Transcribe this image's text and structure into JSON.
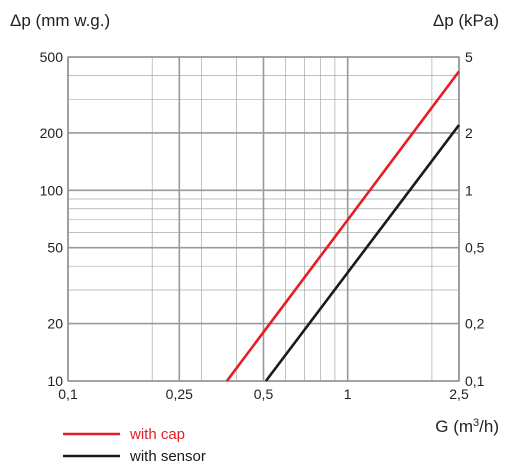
{
  "chart_data": {
    "type": "line",
    "x_scale": "log",
    "y_scale": "log",
    "xlim": [
      0.1,
      2.5
    ],
    "ylim": [
      10,
      500
    ],
    "y2lim": [
      0.1,
      5
    ],
    "grid": true,
    "legend_position": "bottom-left",
    "xlabel": "G (m³/h)",
    "ylabel_left": "Δp (mm w.g.)",
    "ylabel_right": "Δp (kPa)",
    "x_ticks": [
      {
        "value": 0.1,
        "label": "0,1"
      },
      {
        "value": 0.25,
        "label": "0,25"
      },
      {
        "value": 0.5,
        "label": "0,5"
      },
      {
        "value": 1,
        "label": "1"
      },
      {
        "value": 2.5,
        "label": "2,5"
      }
    ],
    "y_ticks_left": [
      {
        "value": 10,
        "label": "10"
      },
      {
        "value": 20,
        "label": "20"
      },
      {
        "value": 50,
        "label": "50"
      },
      {
        "value": 100,
        "label": "100"
      },
      {
        "value": 200,
        "label": "200"
      },
      {
        "value": 500,
        "label": "500"
      }
    ],
    "y_ticks_right": [
      {
        "value": 0.1,
        "label": "0,1"
      },
      {
        "value": 0.2,
        "label": "0,2"
      },
      {
        "value": 0.5,
        "label": "0,5"
      },
      {
        "value": 1,
        "label": "1"
      },
      {
        "value": 2,
        "label": "2"
      },
      {
        "value": 5,
        "label": "5"
      }
    ],
    "series": [
      {
        "name": "with cap",
        "color": "#e31e24",
        "points": [
          {
            "x": 0.37,
            "y": 10
          },
          {
            "x": 2.5,
            "y": 420
          }
        ]
      },
      {
        "name": "with sensor",
        "color": "#1a1a1a",
        "points": [
          {
            "x": 0.51,
            "y": 10
          },
          {
            "x": 2.5,
            "y": 220
          }
        ]
      }
    ]
  }
}
